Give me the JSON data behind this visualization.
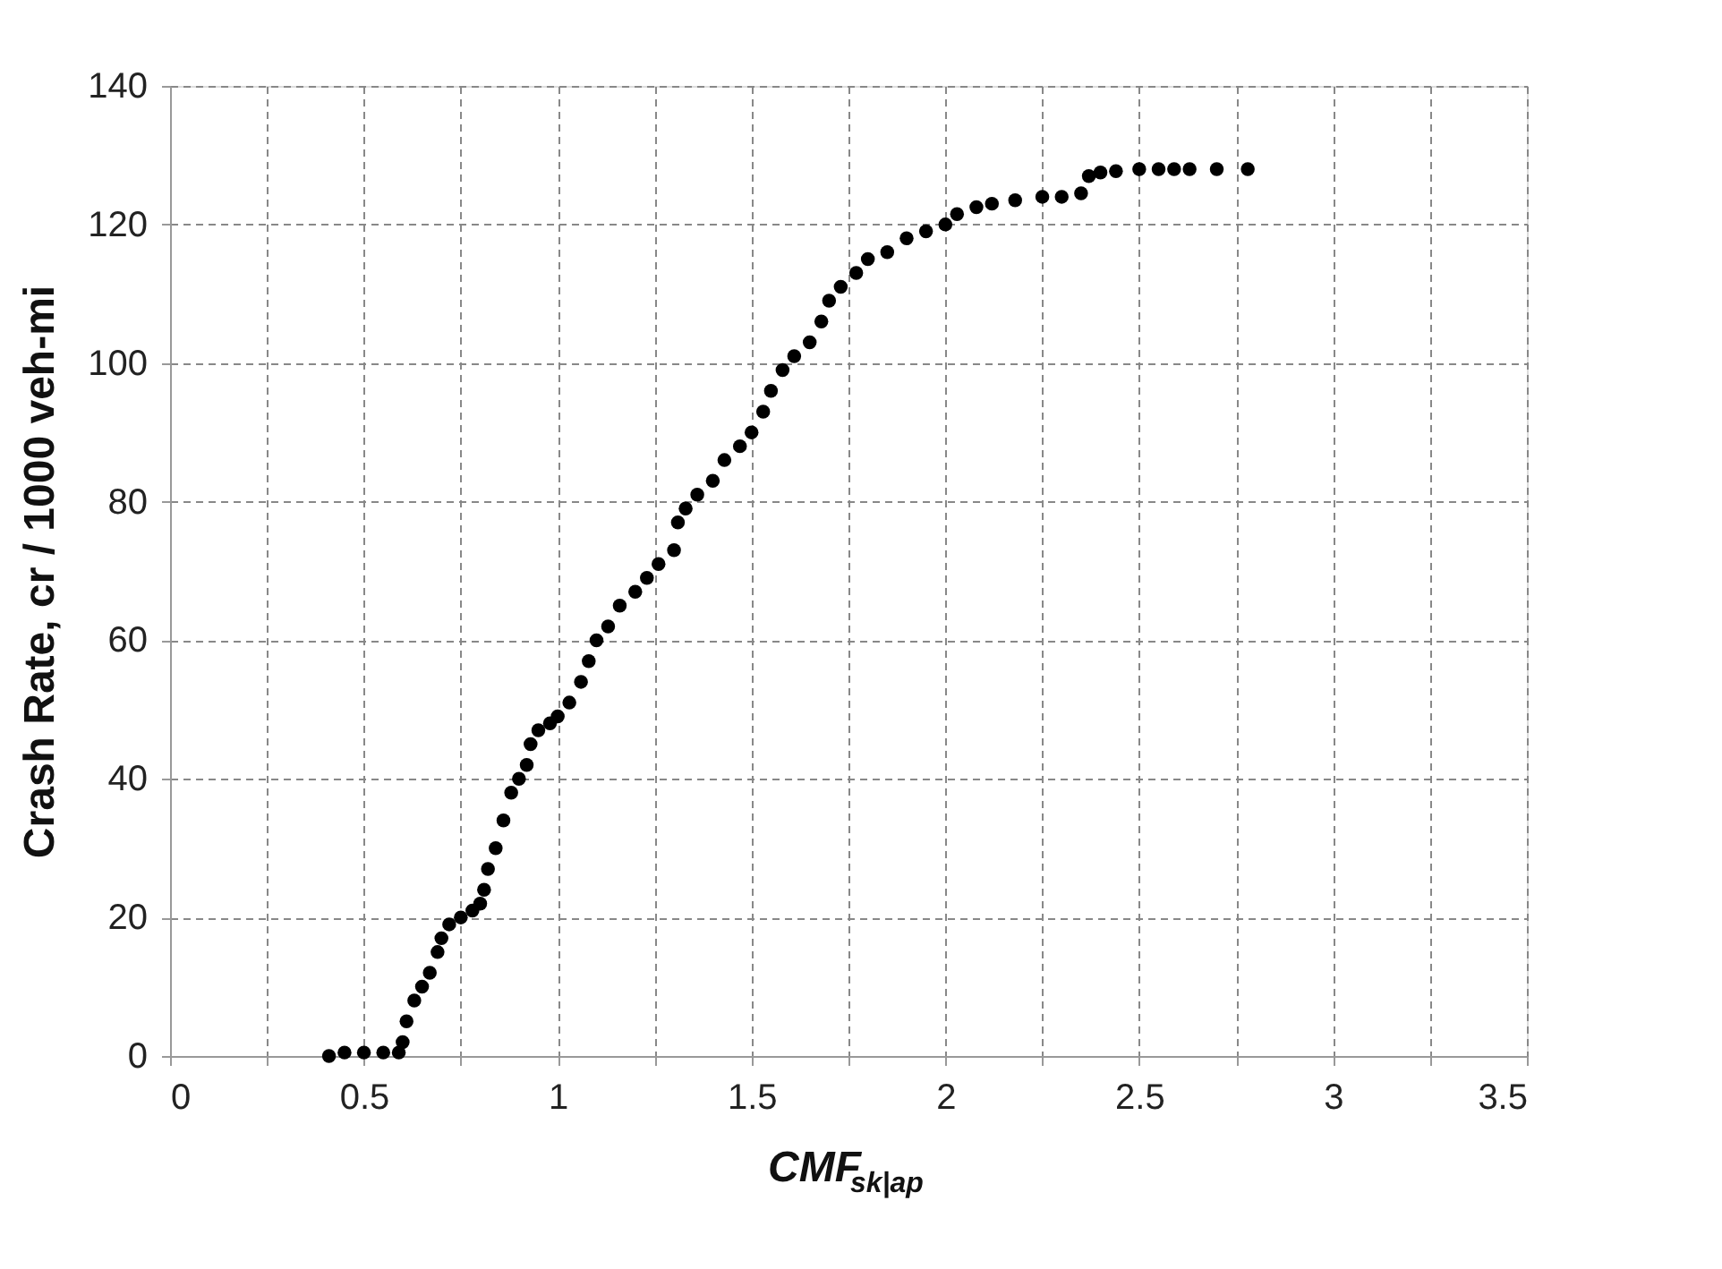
{
  "chart_data": {
    "type": "scatter",
    "xlabel": "CMF$_{sk|ap}$",
    "ylabel": "Crash Rate, cr / 1000 veh-mi",
    "x": [
      0.41,
      0.45,
      0.5,
      0.55,
      0.59,
      0.6,
      0.61,
      0.63,
      0.65,
      0.67,
      0.69,
      0.7,
      0.72,
      0.75,
      0.78,
      0.8,
      0.81,
      0.82,
      0.84,
      0.86,
      0.88,
      0.9,
      0.92,
      0.93,
      0.95,
      0.98,
      1.0,
      1.03,
      1.06,
      1.08,
      1.1,
      1.13,
      1.16,
      1.2,
      1.23,
      1.26,
      1.3,
      1.31,
      1.33,
      1.36,
      1.4,
      1.43,
      1.47,
      1.5,
      1.53,
      1.55,
      1.58,
      1.61,
      1.65,
      1.68,
      1.7,
      1.73,
      1.77,
      1.8,
      1.85,
      1.9,
      1.95,
      2.0,
      2.03,
      2.08,
      2.12,
      2.18,
      2.25,
      2.3,
      2.35,
      2.37,
      2.4,
      2.44,
      2.5,
      2.55,
      2.59,
      2.63,
      2.7,
      2.78
    ],
    "series": [
      {
        "color": "#000000",
        "values": [
          0,
          0.5,
          0.5,
          0.5,
          0.5,
          2,
          5,
          8,
          10,
          12,
          15,
          17,
          19,
          20,
          21,
          22,
          24,
          27,
          30,
          34,
          38,
          40,
          42,
          45,
          47,
          48,
          49,
          51,
          54,
          57,
          60,
          62,
          65,
          67,
          69,
          71,
          73,
          77,
          79,
          81,
          83,
          86,
          88,
          90,
          93,
          96,
          99,
          101,
          103,
          106,
          109,
          111,
          113,
          115,
          116,
          118,
          119,
          120,
          121.5,
          122.5,
          123,
          123.5,
          124,
          124,
          124.5,
          127,
          127.5,
          127.7,
          128,
          128,
          128,
          128,
          128,
          128
        ]
      }
    ],
    "xlim": [
      0,
      3.5
    ],
    "xticks": [
      0,
      {
        "value": 0.25,
        "label": null
      },
      0.5,
      {
        "value": 0.75,
        "label": null
      },
      1,
      {
        "value": 1.25,
        "label": null
      },
      1.5,
      {
        "value": 1.75,
        "label": null
      },
      2,
      {
        "value": 2.25,
        "label": null
      },
      2.5,
      {
        "value": 2.75,
        "label": null
      },
      3,
      {
        "value": 3.25,
        "label": null
      },
      3.5
    ],
    "ylim": [
      0,
      140
    ],
    "yticks": [
      0,
      20,
      40,
      60,
      80,
      100,
      120,
      140
    ],
    "grid": true,
    "marker": "circle"
  }
}
